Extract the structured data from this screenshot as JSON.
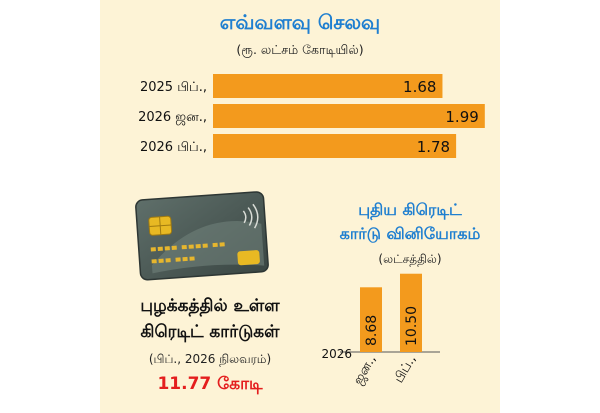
{
  "spending": {
    "title": "எவ்வளவு செலவு",
    "unit": "(ரூ. லட்சம் கோடியில்)"
  },
  "cards_in_use": {
    "line1": "புழக்கத்தில் உள்ள",
    "line2": "கிரெடிட் கார்டுகள்",
    "note": "(பிப்., 2026 நிலவரம்)",
    "value": "11.77 கோடி"
  },
  "new_cards": {
    "title_line1": "புதிய கிரெடிட்",
    "title_line2": "கார்டு வினியோகம்",
    "unit": "(லட்சத்தில்)",
    "year_label": "2026"
  },
  "colors": {
    "background": "#fdf3d6",
    "bar": "#f39a1d",
    "title": "#1f7fd0",
    "highlight": "#e41e1e"
  },
  "chart_data": [
    {
      "type": "bar",
      "orientation": "horizontal",
      "title": "எவ்வளவு செலவு",
      "subtitle": "(ரூ. லட்சம் கோடியில்)",
      "categories": [
        "2025 பிப்.,",
        "2026 ஜன.,",
        "2026 பிப்.,"
      ],
      "values": [
        1.68,
        1.99,
        1.78
      ],
      "xlim": [
        0,
        2.05
      ],
      "grid": false,
      "legend": "none"
    },
    {
      "type": "bar",
      "orientation": "vertical",
      "title": "புதிய கிரெடிட் கார்டு வினியோகம்",
      "subtitle": "(லட்சத்தில்)",
      "categories": [
        "ஜன.,",
        "பிப்.,"
      ],
      "year_label": "2026",
      "values": [
        8.68,
        10.5
      ],
      "ylim": [
        0,
        11
      ],
      "grid": false,
      "legend": "none"
    }
  ]
}
